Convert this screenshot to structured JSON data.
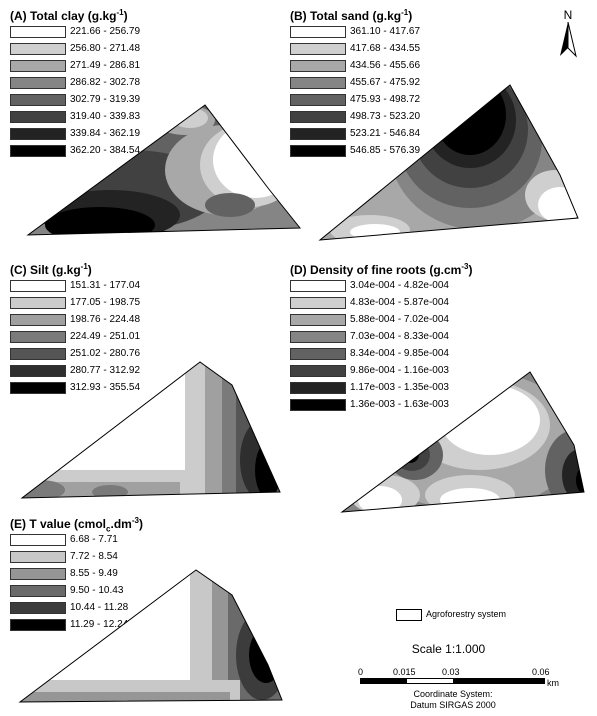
{
  "panels": {
    "a": {
      "title": "(A) Total clay (g.kg",
      "sup": "-1",
      "tail": ")",
      "classes": [
        "221.66 - 256.79",
        "256.80 - 271.48",
        "271.49 - 286.81",
        "286.82 - 302.78",
        "302.79 - 319.39",
        "319.40 - 339.83",
        "339.84 - 362.19",
        "362.20 - 384.54"
      ]
    },
    "b": {
      "title": "(B) Total sand (g.kg",
      "sup": "-1",
      "tail": ")",
      "classes": [
        "361.10 - 417.67",
        "417.68 - 434.55",
        "434.56 - 455.66",
        "455.67 - 475.92",
        "475.93 - 498.72",
        "498.73 - 523.20",
        "523.21 - 546.84",
        "546.85 - 576.39"
      ]
    },
    "c": {
      "title": "(C) Silt (g.kg",
      "sup": "-1",
      "tail": ")",
      "classes": [
        "151.31 - 177.04",
        "177.05 - 198.75",
        "198.76 - 224.48",
        "224.49 - 251.01",
        "251.02 - 280.76",
        "280.77 - 312.92",
        "312.93 - 355.54"
      ]
    },
    "d": {
      "title": "(D) Density of fine roots (g.cm",
      "sup": "-3",
      "tail": ")",
      "classes": [
        "3.04e-004 - 4.82e-004",
        "4.83e-004 - 5.87e-004",
        "5.88e-004 - 7.02e-004",
        "7.03e-004 - 8.33e-004",
        "8.34e-004 - 9.85e-004",
        "9.86e-004 - 1.16e-003",
        "1.17e-003 - 1.35e-003",
        "1.36e-003 - 1.63e-003"
      ]
    },
    "e": {
      "title": "(E) T value (cmol",
      "sub": "c",
      "tail": ".dm",
      "sup": "-3",
      "tail2": ")",
      "classes": [
        "6.68 - 7.71",
        "7.72 - 8.54",
        "8.55 - 9.49",
        "9.50 - 10.43",
        "10.44 - 11.28",
        "11.29 - 12.24"
      ]
    }
  },
  "colors": {
    "ramp8": [
      "#ffffff",
      "#cfcfcf",
      "#a8a8a8",
      "#858585",
      "#626262",
      "#414141",
      "#232323",
      "#000000"
    ],
    "ramp7": [
      "#ffffff",
      "#cccccc",
      "#a0a0a0",
      "#7a7a7a",
      "#555555",
      "#2e2e2e",
      "#000000"
    ],
    "ramp6": [
      "#ffffff",
      "#c8c8c8",
      "#969696",
      "#6a6a6a",
      "#3c3c3c",
      "#000000"
    ]
  },
  "north": "N",
  "legend_item": "Agroforestry system",
  "scale": "Scale 1:1.000",
  "scalebar": {
    "ticks": [
      "0",
      "0.015",
      "0.03",
      "0.06"
    ],
    "unit": "km"
  },
  "coordinate": {
    "line1": "Coordinate System:",
    "line2": "Datum SIRGAS 2000"
  }
}
